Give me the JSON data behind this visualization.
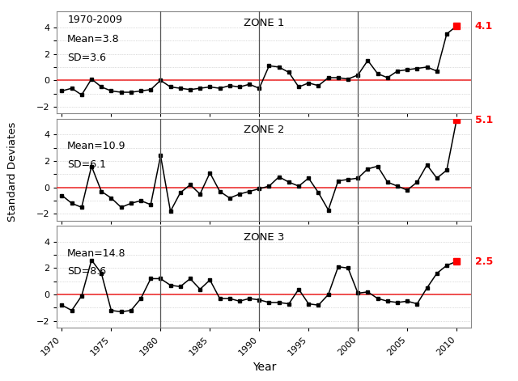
{
  "years": [
    1970,
    1971,
    1972,
    1973,
    1974,
    1975,
    1976,
    1977,
    1978,
    1979,
    1980,
    1981,
    1982,
    1983,
    1984,
    1985,
    1986,
    1987,
    1988,
    1989,
    1990,
    1991,
    1992,
    1993,
    1994,
    1995,
    1996,
    1997,
    1998,
    1999,
    2000,
    2001,
    2002,
    2003,
    2004,
    2005,
    2006,
    2007,
    2008,
    2009,
    2010
  ],
  "zone1": [
    -0.8,
    -0.6,
    -1.1,
    0.1,
    -0.5,
    -0.8,
    -0.9,
    -0.9,
    -0.8,
    -0.7,
    0.0,
    -0.5,
    -0.6,
    -0.7,
    -0.6,
    -0.5,
    -0.6,
    -0.4,
    -0.5,
    -0.3,
    -0.6,
    1.1,
    1.0,
    0.6,
    -0.5,
    -0.2,
    -0.4,
    0.2,
    0.2,
    0.1,
    0.4,
    1.5,
    0.5,
    0.2,
    0.7,
    0.8,
    0.9,
    1.0,
    0.7,
    3.5,
    4.1
  ],
  "zone2": [
    -0.6,
    -1.2,
    -1.5,
    1.6,
    -0.3,
    -0.8,
    -1.5,
    -1.2,
    -1.0,
    -1.3,
    2.4,
    -1.8,
    -0.4,
    0.2,
    -0.5,
    1.1,
    -0.3,
    -0.8,
    -0.5,
    -0.3,
    -0.1,
    0.1,
    0.8,
    0.4,
    0.1,
    0.7,
    -0.4,
    -1.7,
    0.5,
    0.6,
    0.7,
    1.4,
    1.6,
    0.4,
    0.1,
    -0.2,
    0.4,
    1.7,
    0.7,
    1.3,
    5.1
  ],
  "zone3": [
    -0.8,
    -1.2,
    -0.1,
    2.6,
    1.6,
    -1.2,
    -1.3,
    -1.2,
    -0.3,
    1.2,
    1.2,
    0.7,
    0.6,
    1.2,
    0.4,
    1.1,
    -0.3,
    -0.3,
    -0.5,
    -0.3,
    -0.4,
    -0.6,
    -0.6,
    -0.7,
    0.4,
    -0.7,
    -0.8,
    0.0,
    2.1,
    2.0,
    0.1,
    0.2,
    -0.3,
    -0.5,
    -0.6,
    -0.5,
    -0.7,
    0.5,
    1.6,
    2.2,
    2.5
  ],
  "vlines": [
    1980,
    1990,
    2000
  ],
  "zone_labels": [
    "ZONE 1",
    "ZONE 2",
    "ZONE 3"
  ],
  "zone_means": [
    "Mean=3.8",
    "Mean=10.9",
    "Mean=14.8"
  ],
  "zone_sds": [
    "SD=3.6",
    "SD=6.1",
    "SD=8.6"
  ],
  "date_range": "1970-2009",
  "final_values": [
    "4.1",
    "5.1",
    "2.5"
  ],
  "ylim": [
    -2.5,
    5.2
  ],
  "yticks": [
    -2,
    0,
    2,
    4
  ],
  "hline_color": "#EE3333",
  "line_color": "black",
  "marker": "s",
  "markersize": 3.5,
  "ylabel": "Standard Deviates",
  "xlabel": "Year",
  "bg_color": "white",
  "xticks": [
    1970,
    1975,
    1980,
    1985,
    1990,
    1995,
    2000,
    2005,
    2010
  ],
  "xlim": [
    1969.5,
    2011.5
  ]
}
